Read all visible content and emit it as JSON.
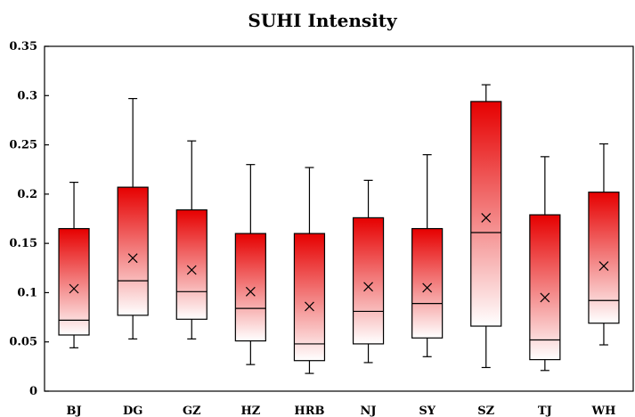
{
  "chart_data": {
    "type": "box",
    "title": "SUHI Intensity",
    "xlabel": "",
    "ylabel": "",
    "ylim": [
      0,
      0.35
    ],
    "yticks": [
      0,
      0.05,
      0.1,
      0.15,
      0.2,
      0.25,
      0.3,
      0.35
    ],
    "ytick_labels": [
      "0",
      "0.05",
      "0.1",
      "0.15",
      "0.2",
      "0.25",
      "0.3",
      "0.35"
    ],
    "grid": false,
    "legend": "none",
    "box_fill_top": "#e60000",
    "box_fill_bottom": "#ffffff",
    "categories": [
      "BJ",
      "DG",
      "GZ",
      "HZ",
      "HRB",
      "NJ",
      "SY",
      "SZ",
      "TJ",
      "WH"
    ],
    "boxes": [
      {
        "label": "BJ",
        "min": 0.044,
        "q1": 0.057,
        "median": 0.072,
        "q3": 0.165,
        "max": 0.212,
        "mean": 0.104
      },
      {
        "label": "DG",
        "min": 0.053,
        "q1": 0.077,
        "median": 0.112,
        "q3": 0.207,
        "max": 0.297,
        "mean": 0.135
      },
      {
        "label": "GZ",
        "min": 0.053,
        "q1": 0.073,
        "median": 0.101,
        "q3": 0.184,
        "max": 0.254,
        "mean": 0.123
      },
      {
        "label": "HZ",
        "min": 0.027,
        "q1": 0.051,
        "median": 0.084,
        "q3": 0.16,
        "max": 0.23,
        "mean": 0.101
      },
      {
        "label": "HRB",
        "min": 0.018,
        "q1": 0.031,
        "median": 0.048,
        "q3": 0.16,
        "max": 0.227,
        "mean": 0.086
      },
      {
        "label": "NJ",
        "min": 0.029,
        "q1": 0.048,
        "median": 0.081,
        "q3": 0.176,
        "max": 0.214,
        "mean": 0.106
      },
      {
        "label": "SY",
        "min": 0.035,
        "q1": 0.054,
        "median": 0.089,
        "q3": 0.165,
        "max": 0.24,
        "mean": 0.105
      },
      {
        "label": "SZ",
        "min": 0.024,
        "q1": 0.066,
        "median": 0.161,
        "q3": 0.294,
        "max": 0.311,
        "mean": 0.176
      },
      {
        "label": "TJ",
        "min": 0.021,
        "q1": 0.032,
        "median": 0.052,
        "q3": 0.179,
        "max": 0.238,
        "mean": 0.095
      },
      {
        "label": "WH",
        "min": 0.047,
        "q1": 0.069,
        "median": 0.092,
        "q3": 0.202,
        "max": 0.251,
        "mean": 0.127
      }
    ]
  }
}
